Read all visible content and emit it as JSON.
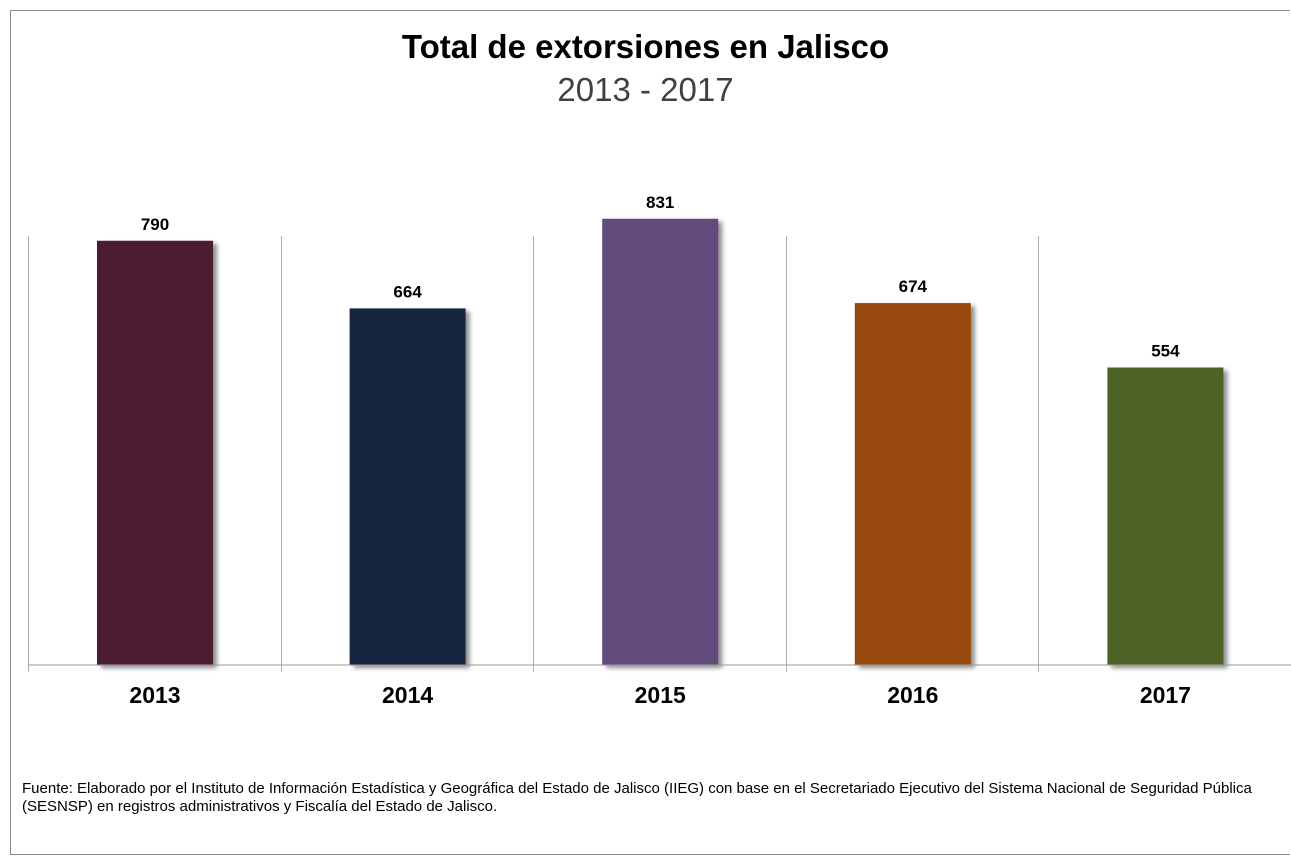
{
  "chart_data": {
    "type": "bar",
    "title": "Total de extorsiones en Jalisco",
    "subtitle": "2013 - 2017",
    "categories": [
      "2013",
      "2014",
      "2015",
      "2016",
      "2017"
    ],
    "values": [
      790,
      664,
      831,
      674,
      554
    ],
    "bar_colors": [
      "#4b1d33",
      "#132640",
      "#604b7b",
      "#984807",
      "#4f6228"
    ],
    "ylim": [
      0,
      1000
    ],
    "grid": false,
    "legend": "none"
  },
  "footer": {
    "source": "Fuente: Elaborado por el Instituto de Información  Estadística y Geográfica del Estado de Jalisco (IIEG) con base en el  Secretariado Ejecutivo del Sistema Nacional  de Seguridad Pública (SESNSP) en registros administrativos y Fiscalía del Estado de Jalisco."
  }
}
